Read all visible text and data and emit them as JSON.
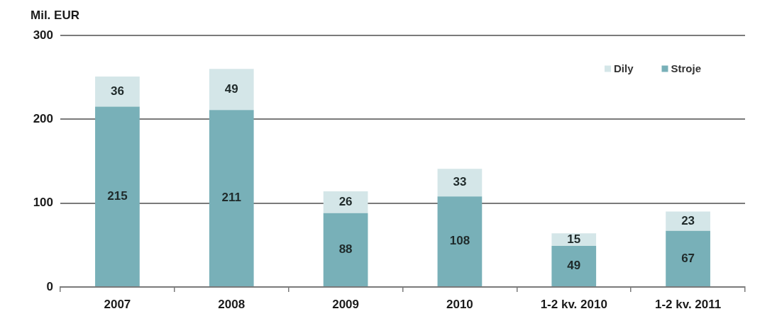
{
  "chart_data": {
    "type": "bar",
    "ylabel": "Mil. EUR",
    "categories": [
      "2007",
      "2008",
      "2009",
      "2010",
      "1-2 kv. 2010",
      "1-2 kv. 2011"
    ],
    "series": [
      {
        "name": "Stroje",
        "color": "#78b0b8",
        "values": [
          215,
          211,
          88,
          108,
          49,
          67
        ]
      },
      {
        "name": "Dily",
        "color": "#d4e6e8",
        "values": [
          36,
          49,
          26,
          33,
          15,
          23
        ]
      }
    ],
    "stacked": true,
    "ylim": [
      0,
      300
    ],
    "yticks": [
      0,
      100,
      200,
      300
    ],
    "grid": "y",
    "data_labels": true,
    "legend": "top right"
  }
}
